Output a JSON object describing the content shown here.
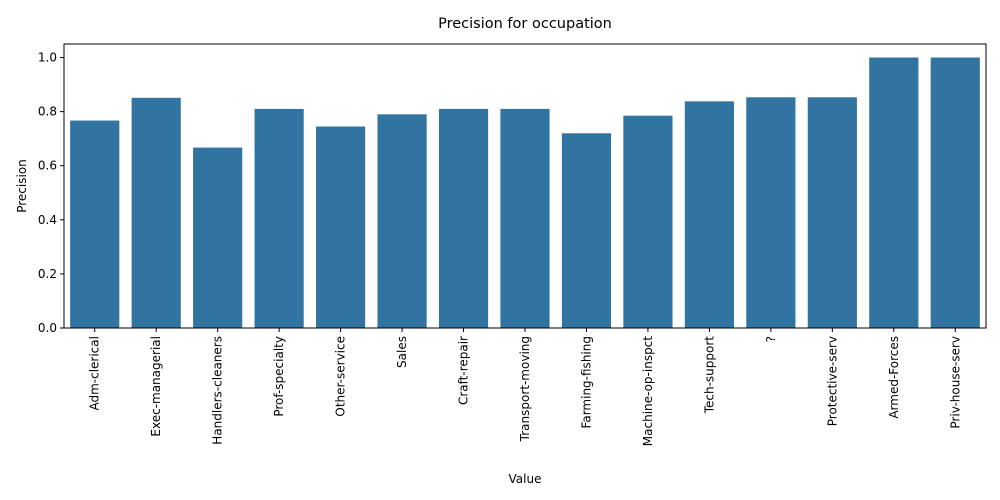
{
  "chart_data": {
    "type": "bar",
    "title": "Precision for occupation",
    "xlabel": "Value",
    "ylabel": "Precision",
    "ylim": [
      0,
      1.05
    ],
    "yticks": [
      0.0,
      0.2,
      0.4,
      0.6,
      0.8,
      1.0
    ],
    "ytick_labels": [
      "0.0",
      "0.2",
      "0.4",
      "0.6",
      "0.8",
      "1.0"
    ],
    "grid": false,
    "bar_color": "#3274a1",
    "categories": [
      "Adm-clerical",
      "Exec-managerial",
      "Handlers-cleaners",
      "Prof-specialty",
      "Other-service",
      "Sales",
      "Craft-repair",
      "Transport-moving",
      "Farming-fishing",
      "Machine-op-inspct",
      "Tech-support",
      "?",
      "Protective-serv",
      "Armed-Forces",
      "Priv-house-serv"
    ],
    "values": [
      0.767,
      0.851,
      0.667,
      0.81,
      0.745,
      0.79,
      0.81,
      0.81,
      0.72,
      0.785,
      0.838,
      0.853,
      0.853,
      1.0,
      1.0
    ]
  }
}
